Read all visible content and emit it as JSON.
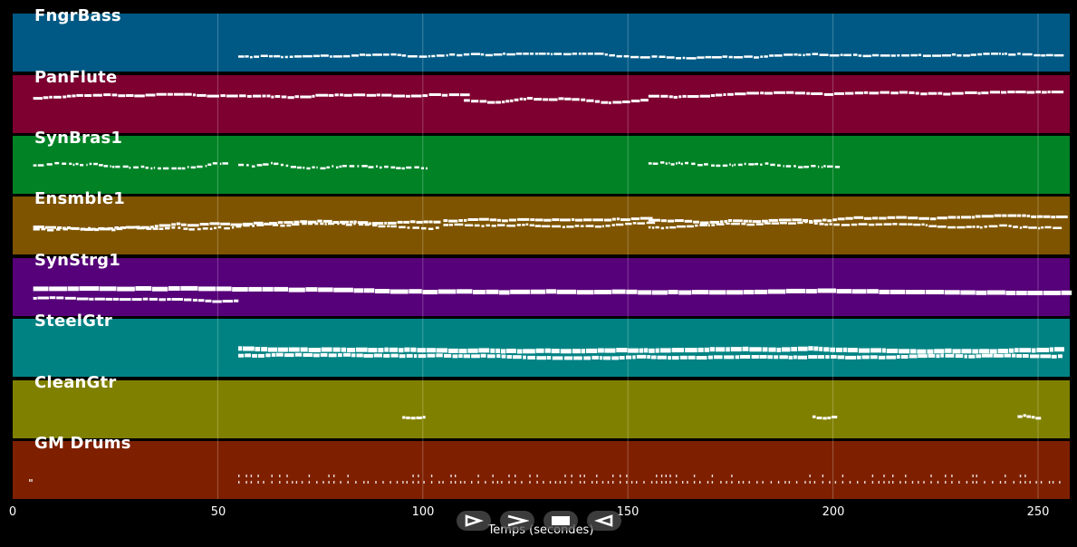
{
  "colors": {
    "background": "#000000",
    "note": "#ffffff",
    "grid": "#ffffff"
  },
  "tracks": [
    {
      "name": "FngrBass",
      "color": "#005984"
    },
    {
      "name": "PanFlute",
      "color": "#7d0030"
    },
    {
      "name": "SynBras1",
      "color": "#008225"
    },
    {
      "name": "Ensmble1",
      "color": "#7e5400"
    },
    {
      "name": "SynStrg1",
      "color": "#560079"
    },
    {
      "name": "SteelGtr",
      "color": "#008283"
    },
    {
      "name": "CleanGtr",
      "color": "#808000"
    },
    {
      "name": "GM Drums",
      "color": "#7e2000"
    }
  ],
  "x_axis": {
    "label": "Temps (secondes)",
    "ticks": [
      "0",
      "50",
      "100",
      "150",
      "200",
      "250"
    ],
    "range": [
      0,
      258
    ]
  },
  "controls": [
    {
      "name": "play-forward",
      "icon": "play-outline-icon"
    },
    {
      "name": "next",
      "icon": "chevron-right-icon"
    },
    {
      "name": "stop",
      "icon": "stop-icon"
    },
    {
      "name": "play-backward",
      "icon": "play-backward-outline-icon"
    }
  ]
}
